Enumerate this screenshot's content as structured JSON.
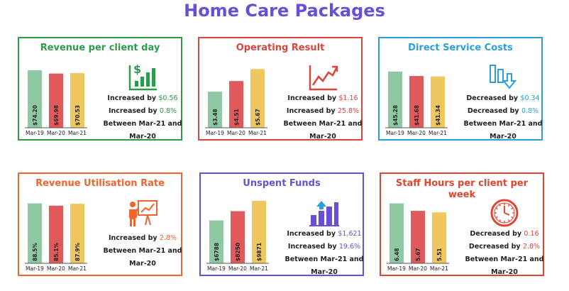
{
  "page": {
    "title": "Home Care Packages"
  },
  "colors": {
    "title": "#6a4fd6",
    "bar_mar19": "#8fc9a4",
    "bar_mar20": "#e05a5c",
    "bar_mar21": "#efc760"
  },
  "chart_data": [
    {
      "type": "bar",
      "title": "Revenue per client day",
      "accent": "#2e9a4e",
      "icon": "dollar-bar-chart-icon",
      "categories": [
        "Mar-19",
        "Mar-20",
        "Mar-21"
      ],
      "values": [
        74.2,
        69.98,
        70.53
      ],
      "value_labels": [
        "$74.20",
        "$69.98",
        "$70.53"
      ],
      "ylim": [
        0,
        74.2
      ],
      "summary": {
        "line1_prefix": "Increased by ",
        "line1_value": "$0.56",
        "line2_prefix": "Increased by ",
        "line2_value": "0.8%",
        "line3": "Between Mar-21 and",
        "line4": "Mar-20"
      }
    },
    {
      "type": "bar",
      "title": "Operating Result",
      "accent": "#d9453f",
      "icon": "trend-up-icon",
      "categories": [
        "Mar-19",
        "Mar-20",
        "Mar-21"
      ],
      "values": [
        3.48,
        4.51,
        5.67
      ],
      "value_labels": [
        "$3.48",
        "$4.51",
        "$5.67"
      ],
      "ylim": [
        0,
        5.67
      ],
      "summary": {
        "line1_prefix": "Increased by ",
        "line1_value": "$1.16",
        "line2_prefix": "Increased by ",
        "line2_value": "25.8%",
        "line3": "Between Mar-21 and",
        "line4": "Mar-20"
      }
    },
    {
      "type": "bar",
      "title": "Direct Service Costs",
      "accent": "#2d9fd8",
      "icon": "decrease-bars-icon",
      "categories": [
        "Mar-19",
        "Mar-20",
        "Mar-21"
      ],
      "values": [
        45.28,
        41.68,
        41.34
      ],
      "value_labels": [
        "$45.28",
        "$41.68",
        "$41.34"
      ],
      "ylim": [
        0,
        45.28
      ],
      "summary": {
        "line1_prefix": "Decreased by ",
        "line1_value": "$0.34",
        "line2_prefix": "Decreased by ",
        "line2_value": "0.8%",
        "line3": "Between Mar-21 and",
        "line4": "Mar-20"
      }
    },
    {
      "type": "bar",
      "title": "Revenue Utilisation Rate",
      "accent": "#f0642d",
      "icon": "presenter-chart-icon",
      "categories": [
        "Mar-19",
        "Mar-20",
        "Mar-21"
      ],
      "values": [
        88.5,
        85.1,
        87.9
      ],
      "value_labels": [
        "88.5%",
        "85.1%",
        "87.9%"
      ],
      "ylim": [
        0,
        88.5
      ],
      "summary": {
        "line1_prefix": "Increased by ",
        "line1_value": "2.8%",
        "line3": "Between Mar-21 and",
        "line4": "Mar-20"
      }
    },
    {
      "type": "bar",
      "title": "Unspent Funds",
      "accent": "#6a4fd6",
      "icon": "growth-bars-icon",
      "categories": [
        "Mar-19",
        "Mar-20",
        "Mar-21"
      ],
      "values": [
        6788,
        8250,
        9871
      ],
      "value_labels": [
        "$6788",
        "$8250",
        "$9871"
      ],
      "ylim": [
        0,
        9871
      ],
      "summary": {
        "line1_prefix": "Increased by ",
        "line1_value": "$1,621",
        "line2_prefix": "Increased by ",
        "line2_value": "19.6%",
        "line3": "Between Mar-21 and",
        "line4": "Mar-20"
      }
    },
    {
      "type": "bar",
      "title": "Staff Hours per client per week",
      "accent": "#e0452f",
      "icon": "clock-icon",
      "categories": [
        "Mar-19",
        "Mar-20",
        "Mar-21"
      ],
      "values": [
        6.48,
        5.67,
        5.51
      ],
      "value_labels": [
        "6.48",
        "5.67",
        "5.51"
      ],
      "ylim": [
        0,
        6.48
      ],
      "summary": {
        "line1_prefix": "Decreased by ",
        "line1_value": "0.16",
        "line2_prefix": "Decreased by ",
        "line2_value": "2.8%",
        "line3": "Between Mar-21 and",
        "line4": "Mar-20"
      }
    }
  ]
}
